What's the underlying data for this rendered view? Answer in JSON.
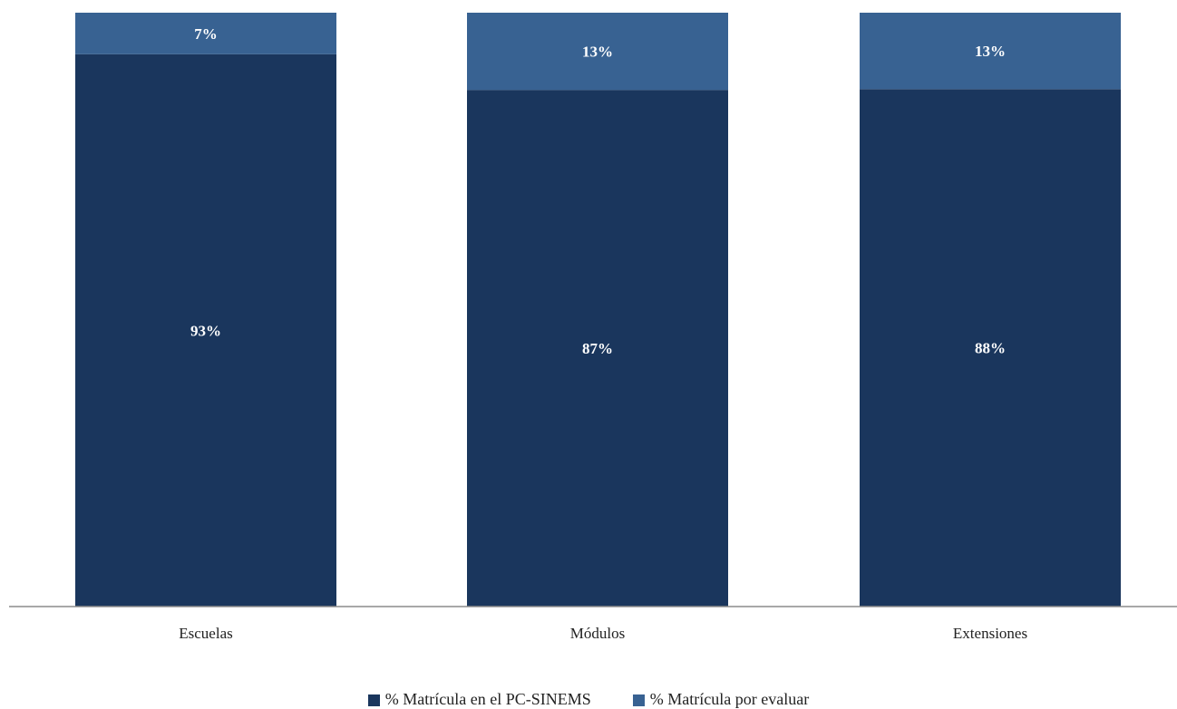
{
  "chart_data": {
    "type": "bar",
    "stacked": true,
    "normalized_percent": true,
    "categories": [
      "Escuelas",
      "Módulos",
      "Extensiones"
    ],
    "series": [
      {
        "name": "% Matrícula en el PC-SINEMS",
        "values": [
          93,
          87,
          88
        ],
        "labels": [
          "93%",
          "87%",
          "88%"
        ],
        "color": "#1a365d"
      },
      {
        "name": "% Matrícula por evaluar",
        "values": [
          7,
          13,
          13
        ],
        "labels": [
          "7%",
          "13%",
          "13%"
        ],
        "color": "#386292"
      }
    ],
    "title": "",
    "xlabel": "",
    "ylabel": "",
    "legend_position": "bottom",
    "grid": false
  }
}
